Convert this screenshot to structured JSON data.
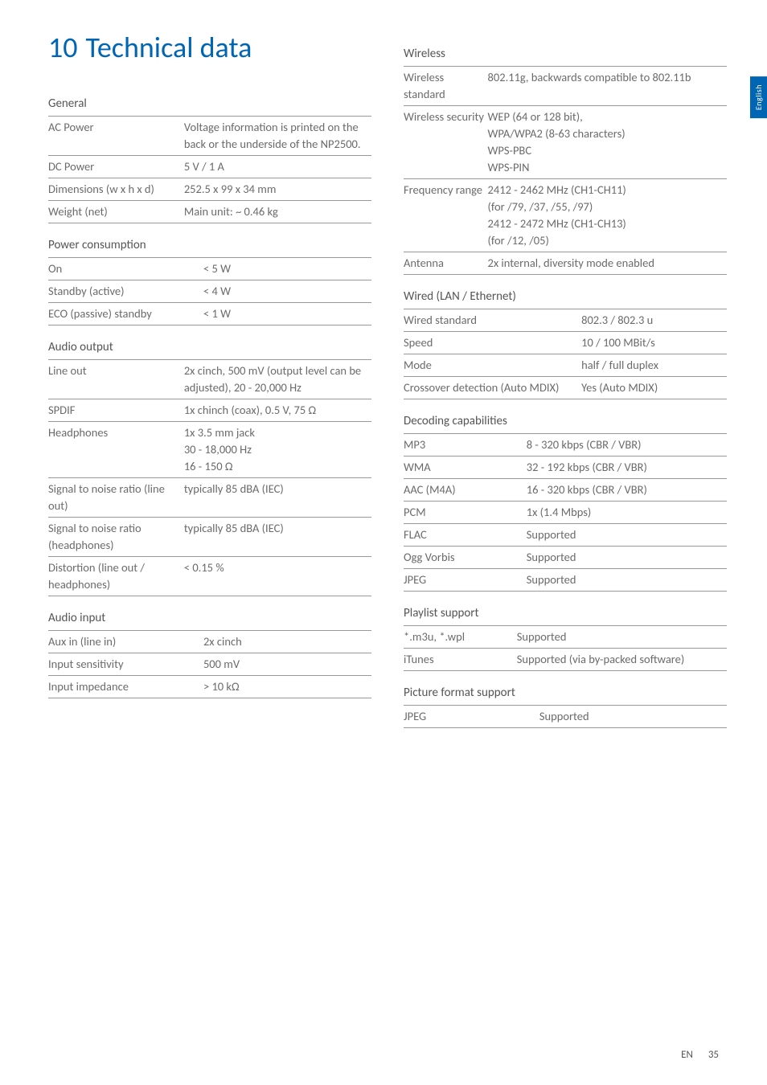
{
  "chapter": {
    "number": "10",
    "title": "Technical data"
  },
  "side_tab": "English",
  "footer": {
    "lang": "EN",
    "page": "35"
  },
  "colors": {
    "accent": "#0066b3",
    "text": "#6b6b6b",
    "heading": "#555555",
    "rule": "#999999",
    "background": "#ffffff",
    "tab_text": "#ffffff"
  },
  "typography": {
    "chapter_fontsize": 36,
    "section_fontsize": 15,
    "body_fontsize": 14.5,
    "font_family": "Gill Sans"
  },
  "sections": {
    "general": {
      "title": "General",
      "label_width": 42,
      "rows": [
        {
          "label": "AC Power",
          "value": "Voltage information is printed on the back or the underside of the NP2500."
        },
        {
          "label": "DC Power",
          "value": "5 V / 1 A"
        },
        {
          "label": "Dimensions (w x h x d)",
          "value": "252.5 x 99 x 34 mm"
        },
        {
          "label": "Weight (net)",
          "value": "Main unit: ~ 0.46 kg"
        }
      ]
    },
    "power": {
      "title": "Power consumption",
      "label_width": 48,
      "rows": [
        {
          "label": "On",
          "value": "< 5 W"
        },
        {
          "label": "Standby (active)",
          "value": "< 4 W"
        },
        {
          "label": "ECO (passive) standby",
          "value": "< 1 W"
        }
      ]
    },
    "audio_out": {
      "title": "Audio output",
      "label_width": 42,
      "rows": [
        {
          "label": "Line out",
          "value": "2x cinch, 500 mV (output level can be adjusted), 20 - 20,000 Hz"
        },
        {
          "label": "SPDIF",
          "value": "1x chinch (coax), 0.5 V, 75 Ω"
        },
        {
          "label": "Headphones",
          "value": "1x 3.5 mm jack\n30 - 18,000 Hz\n16 - 150 Ω"
        },
        {
          "label": "Signal to noise ratio (line out)",
          "value": "typically 85 dBA (IEC)"
        },
        {
          "label": "Signal to noise ratio (headphones)",
          "value": "typically 85 dBA (IEC)"
        },
        {
          "label": "Distortion (line out / headphones)",
          "value": "< 0.15 %"
        }
      ]
    },
    "audio_in": {
      "title": "Audio input",
      "label_width": 48,
      "rows": [
        {
          "label": "Aux in (line in)",
          "value": "2x cinch"
        },
        {
          "label": "Input sensitivity",
          "value": "500 mV"
        },
        {
          "label": "Input impedance",
          "value": "> 10 kΩ"
        }
      ]
    },
    "wireless": {
      "title": "Wireless",
      "label_width": 26,
      "rows": [
        {
          "label": "Wireless standard",
          "value": "802.11g, backwards compatible to 802.11b"
        },
        {
          "label": "Wireless security",
          "value": "WEP (64 or 128 bit),\nWPA/WPA2 (8-63 characters)\nWPS-PBC\nWPS-PIN"
        },
        {
          "label": "Frequency range",
          "value": "2412 - 2462 MHz (CH1-CH11)\n(for /79, /37, /55, /97)\n2412 - 2472 MHz (CH1-CH13)\n(for /12, /05)"
        },
        {
          "label": "Antenna",
          "value": "2x internal, diversity mode enabled"
        }
      ]
    },
    "wired": {
      "title": "Wired (LAN / Ethernet)",
      "label_width": 55,
      "rows": [
        {
          "label": "Wired standard",
          "value": "802.3 / 802.3 u"
        },
        {
          "label": "Speed",
          "value": "10 / 100 MBit/s"
        },
        {
          "label": "Mode",
          "value": "half / full duplex"
        },
        {
          "label": "Crossover detection (Auto MDIX)",
          "value": "Yes (Auto MDIX)"
        }
      ]
    },
    "decoding": {
      "title": "Decoding capabilities",
      "label_width": 38,
      "rows": [
        {
          "label": "MP3",
          "value": "8 - 320 kbps (CBR / VBR)"
        },
        {
          "label": "WMA",
          "value": "32 - 192 kbps (CBR / VBR)"
        },
        {
          "label": "AAC (M4A)",
          "value": "16 - 320 kbps (CBR / VBR)"
        },
        {
          "label": "PCM",
          "value": "1x (1.4 Mbps)"
        },
        {
          "label": "FLAC",
          "value": "Supported"
        },
        {
          "label": "Ogg Vorbis",
          "value": "Supported"
        },
        {
          "label": "JPEG",
          "value": "Supported"
        }
      ]
    },
    "playlist": {
      "title": "Playlist support",
      "label_width": 35,
      "rows": [
        {
          "label": "*.m3u, *.wpl",
          "value": "Supported"
        },
        {
          "label": "iTunes",
          "value": "Supported (via by-packed software)"
        }
      ]
    },
    "picture": {
      "title": "Picture format support",
      "label_width": 42,
      "rows": [
        {
          "label": "JPEG",
          "value": "Supported"
        }
      ]
    }
  }
}
